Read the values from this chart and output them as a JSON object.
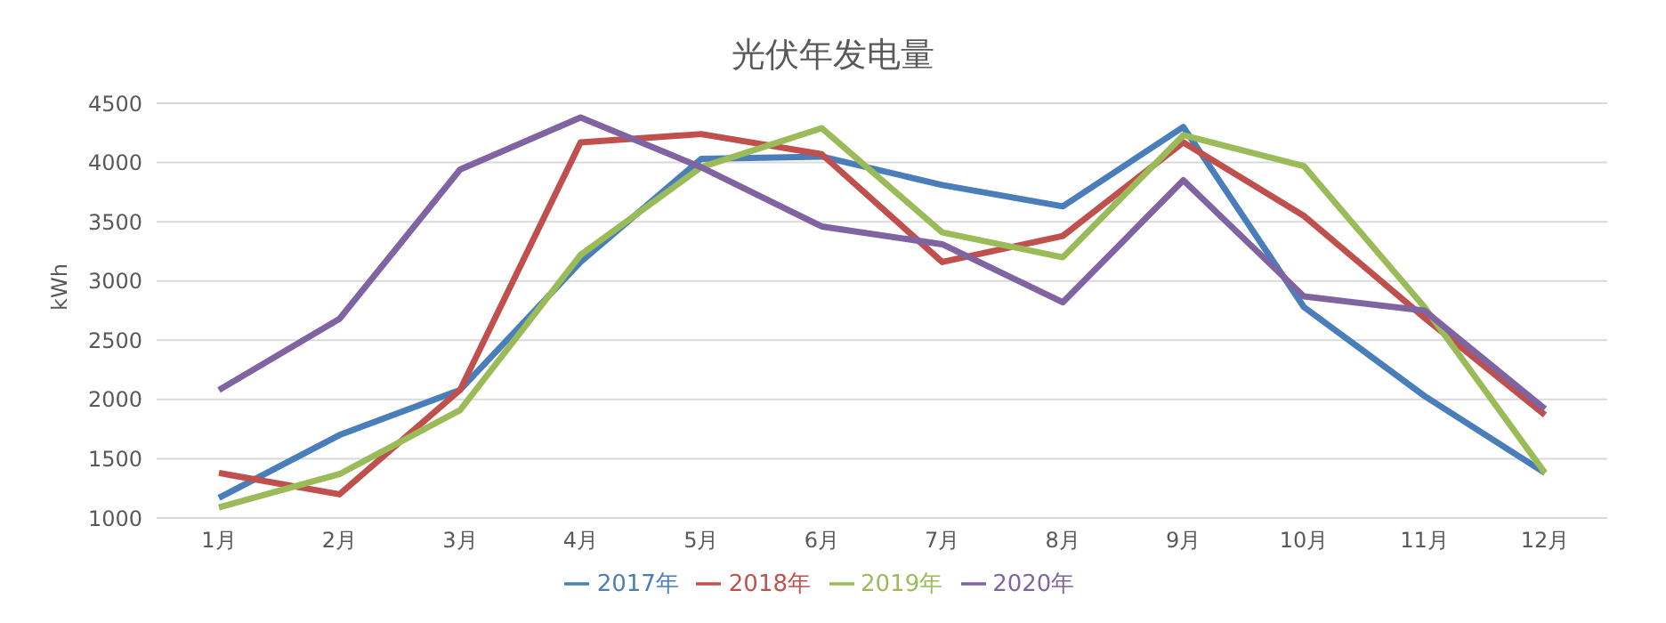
{
  "chart_data": {
    "type": "line",
    "title": "光伏年发电量",
    "ylabel": "kWh",
    "categories": [
      "1月",
      "2月",
      "3月",
      "4月",
      "5月",
      "6月",
      "7月",
      "8月",
      "9月",
      "10月",
      "11月",
      "12月"
    ],
    "series": [
      {
        "name": "2017年",
        "color": "#4a7ebb",
        "values": [
          1170,
          1700,
          2080,
          3160,
          4030,
          4050,
          3810,
          3630,
          4300,
          2780,
          2030,
          1380
        ]
      },
      {
        "name": "2018年",
        "color": "#c0504d",
        "values": [
          1380,
          1200,
          2080,
          4170,
          4240,
          4070,
          3160,
          3380,
          4170,
          3550,
          2690,
          1870
        ]
      },
      {
        "name": "2019年",
        "color": "#9bbb59",
        "values": [
          1090,
          1370,
          1910,
          3220,
          3960,
          4290,
          3410,
          3200,
          4230,
          3970,
          2780,
          1380
        ]
      },
      {
        "name": "2020年",
        "color": "#8064a2",
        "values": [
          2080,
          2680,
          3940,
          4380,
          3960,
          3460,
          3310,
          2820,
          3850,
          2870,
          2750,
          1920
        ]
      }
    ],
    "ylim": [
      1000,
      4500
    ],
    "yticks": [
      1000,
      1500,
      2000,
      2500,
      3000,
      3500,
      4000,
      4500
    ],
    "grid": "y",
    "legend": "bottom",
    "marker": "none",
    "line_style": "solid"
  }
}
